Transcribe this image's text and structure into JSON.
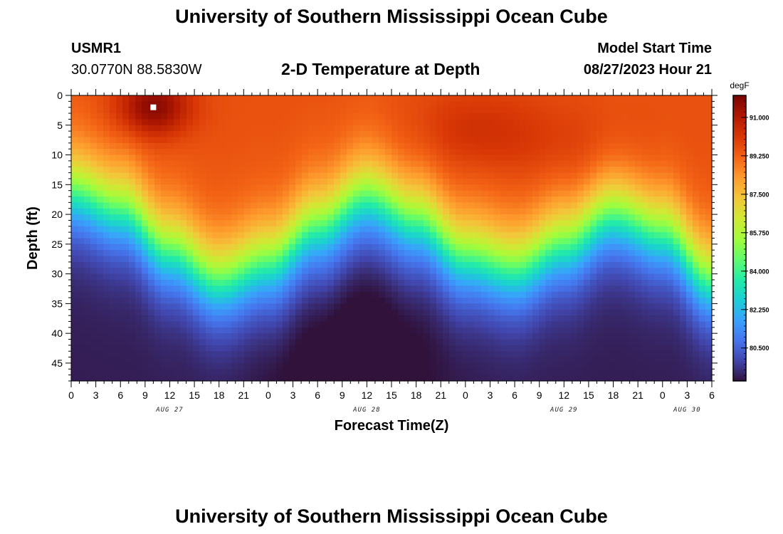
{
  "header": {
    "title": "University of Southern Mississippi Ocean Cube",
    "station_id": "USMR1",
    "coordinates": "30.0770N  88.5830W",
    "plot_title": "2-D Temperature at Depth",
    "model_start_label": "Model Start Time",
    "model_start_value": "08/27/2023 Hour 21"
  },
  "footer": {
    "title": "University of Southern Mississippi Ocean Cube"
  },
  "chart_data": {
    "type": "heatmap",
    "title": "2-D Temperature at Depth",
    "xlabel": "Forecast Time(Z)",
    "ylabel": "Depth (ft)",
    "x_range_hours": [
      0,
      78
    ],
    "x_start": "AUG 27 00Z",
    "y_range_ft": [
      0,
      48
    ],
    "y_inverted": true,
    "y_ticks": [
      0,
      5,
      10,
      15,
      20,
      25,
      30,
      35,
      40,
      45
    ],
    "x_ticks": [
      0,
      3,
      6,
      9,
      12,
      15,
      18,
      21,
      24,
      27,
      30,
      33,
      36,
      39,
      42,
      45,
      48,
      51,
      54,
      57,
      60,
      63,
      66,
      69,
      72,
      75,
      78
    ],
    "x_tick_labels": [
      "0",
      "3",
      "6",
      "9",
      "12",
      "15",
      "18",
      "21",
      "0",
      "3",
      "6",
      "9",
      "12",
      "15",
      "18",
      "21",
      "0",
      "3",
      "6",
      "9",
      "12",
      "15",
      "18",
      "21",
      "0",
      "3",
      "6"
    ],
    "date_labels": [
      {
        "label": "AUG 27",
        "hour": 12
      },
      {
        "label": "AUG 28",
        "hour": 36
      },
      {
        "label": "AUG 29",
        "hour": 60
      },
      {
        "label": "AUG 30",
        "hour": 75
      }
    ],
    "thermocline_depth_ft": {
      "hours": [
        0,
        6,
        12,
        18,
        24,
        30,
        36,
        42,
        48,
        54,
        60,
        66,
        72,
        78
      ],
      "values": [
        16,
        19,
        26,
        31,
        28,
        22,
        17,
        21,
        27,
        29,
        25,
        20,
        23,
        31
      ]
    },
    "surface_temp_degF": 89.6,
    "bottom_temp_degF": 79.2,
    "max_temp_location": {
      "hour": 10,
      "depth_ft": 2,
      "value_degF": 91.8
    },
    "colorbar": {
      "unit": "degF",
      "min": 79.0,
      "max": 92.0,
      "ticks": [
        91.0,
        89.25,
        87.5,
        85.75,
        84.0,
        82.25,
        80.5
      ],
      "tick_labels": [
        "91.000",
        "89.250",
        "87.500",
        "85.750",
        "84.000",
        "82.250",
        "80.500"
      ]
    },
    "colormap": [
      "#30123b",
      "#4145ab",
      "#4675ed",
      "#39a2fc",
      "#1bcfd4",
      "#24eca6",
      "#61fc6c",
      "#a4fc3b",
      "#d1e834",
      "#f3c63a",
      "#fe9b2d",
      "#f36315",
      "#d93806",
      "#b11901",
      "#7a0402"
    ]
  }
}
